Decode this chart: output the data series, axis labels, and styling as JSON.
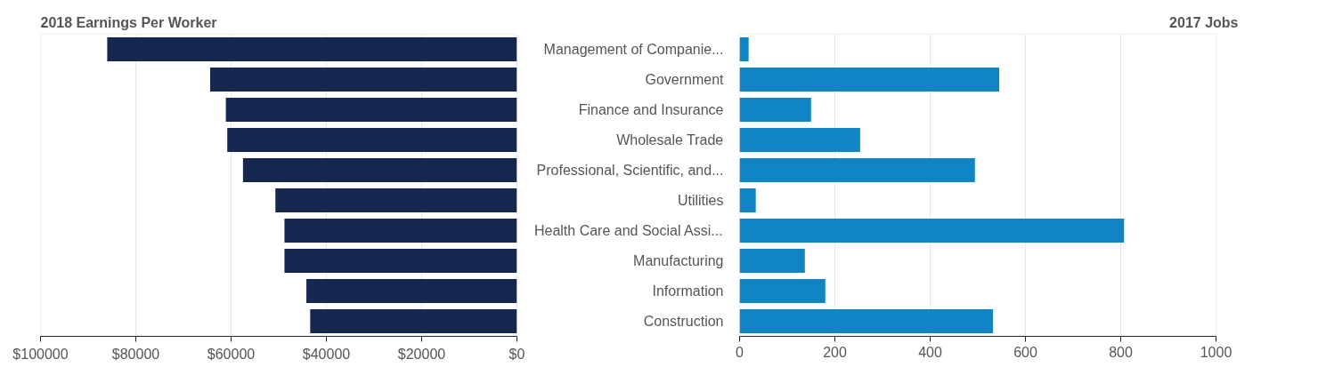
{
  "chart_data": [
    {
      "type": "bar",
      "orientation": "horizontal",
      "title": "2018 Earnings Per Worker",
      "categories": [
        null,
        null,
        null,
        null,
        null,
        null,
        null,
        null,
        null,
        null
      ],
      "values": [
        86000,
        64400,
        61100,
        60800,
        57500,
        50700,
        48800,
        48800,
        44200,
        43400
      ],
      "color": "#172850",
      "xlim": [
        100000,
        0
      ],
      "xticks": [
        {
          "value": 100000,
          "label": "$100000"
        },
        {
          "value": 80000,
          "label": "$80000"
        },
        {
          "value": 60000,
          "label": "$60000"
        },
        {
          "value": 40000,
          "label": "$40000"
        },
        {
          "value": 20000,
          "label": "$20000"
        },
        {
          "value": 0,
          "label": "$0"
        }
      ],
      "grid": "x",
      "tick_labels": "x"
    },
    {
      "type": "bar",
      "orientation": "horizontal",
      "title": "2017 Jobs",
      "categories": [
        "Management of Companie...",
        "Government",
        "Finance and Insurance",
        "Wholesale Trade",
        "Professional, Scientific, and...",
        "Utilities",
        "Health Care and Social Assi...",
        "Manufacturing",
        "Information",
        "Construction"
      ],
      "values": [
        19,
        545,
        150,
        253,
        494,
        34,
        807,
        137,
        180,
        532
      ],
      "color": "#1185c4",
      "xlim": [
        0,
        1000
      ],
      "xticks": [
        0,
        200,
        400,
        600,
        800,
        1000
      ],
      "grid": "x"
    }
  ]
}
